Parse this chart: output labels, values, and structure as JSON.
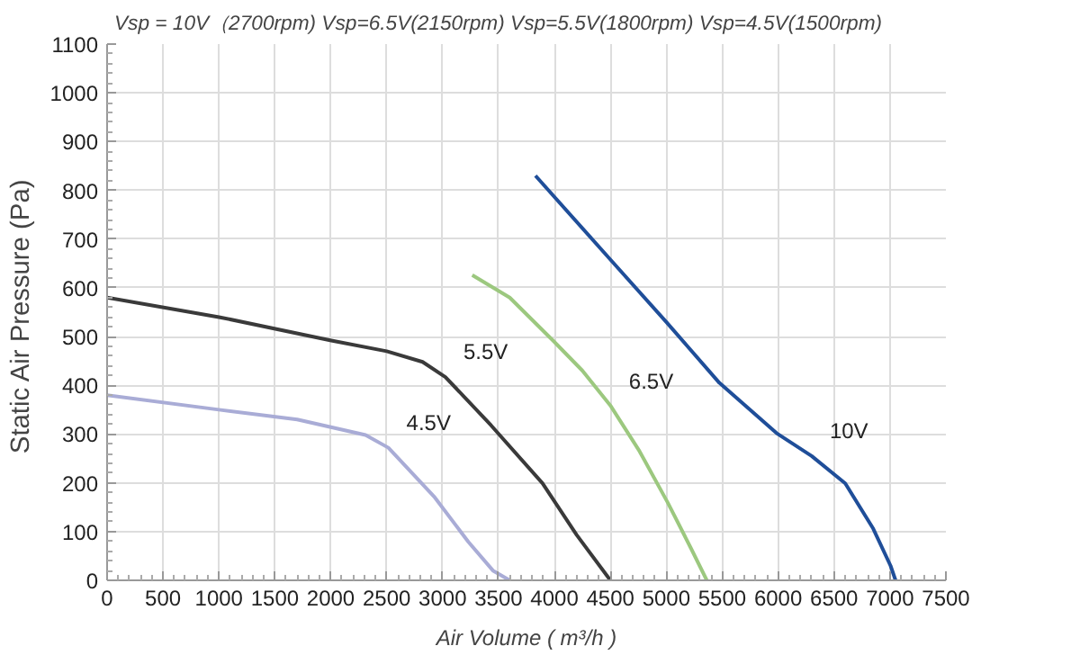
{
  "chart_data": {
    "type": "line",
    "subtitle": "Vsp = 10V（2700rpm)    Vsp=6.5V(2150rpm)     Vsp=5.5V(1800rpm)    Vsp=4.5V(1500rpm)",
    "xlabel": "Air Volume ( m³/h )",
    "ylabel": "Static Air Pressure  (Pa)",
    "xlim": [
      0,
      7500
    ],
    "xticks": [
      0,
      500,
      1000,
      1500,
      2000,
      2500,
      3000,
      3500,
      4000,
      4500,
      5000,
      5500,
      6000,
      6500,
      7000,
      7500
    ],
    "ylim": [
      0,
      1100
    ],
    "yticks": [
      0,
      100,
      200,
      300,
      400,
      500,
      600,
      700,
      800,
      900,
      1000,
      1100
    ],
    "grid": true,
    "marker": "none",
    "line_style": "solid",
    "series": [
      {
        "name": "10V",
        "color": "#1f4e99",
        "x": [
          3830,
          4500,
          5000,
          5475,
          5985,
          6300,
          6600,
          6850,
          7005,
          7050
        ],
        "values": [
          830,
          658,
          530,
          405,
          302,
          255,
          199,
          106,
          30,
          0
        ]
      },
      {
        "name": "6.5V",
        "color": "#9cc87f",
        "x": [
          3265,
          3600,
          3995,
          4250,
          4505,
          4760,
          5014,
          5220,
          5362
        ],
        "values": [
          626,
          580,
          490,
          430,
          357,
          265,
          159,
          66,
          0
        ]
      },
      {
        "name": "5.5V",
        "color": "#3a3a3a",
        "x": [
          0,
          1000,
          2005,
          2500,
          2821,
          3025,
          3433,
          3893,
          4199,
          4500
        ],
        "values": [
          580,
          540,
          492,
          470,
          448,
          417,
          318,
          199,
          93,
          0
        ]
      },
      {
        "name": "4.5V",
        "color": "#a9acd6",
        "x": [
          0,
          1000,
          1700,
          2311,
          2515,
          2923,
          3230,
          3450,
          3600
        ],
        "values": [
          380,
          350,
          330,
          298,
          272,
          172,
          79,
          20,
          0
        ]
      }
    ]
  }
}
